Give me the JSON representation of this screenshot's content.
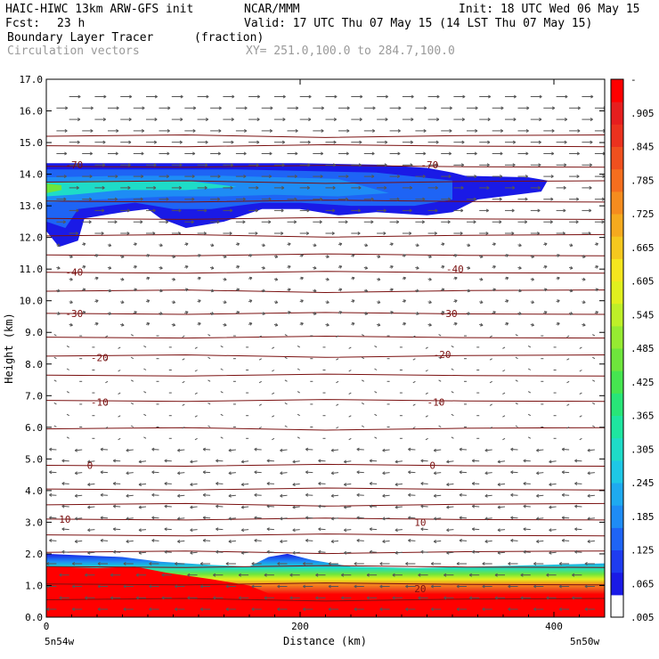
{
  "header": {
    "model": "HAIC-HIWC 13km ARW-GFS init",
    "org": "NCAR/MMM",
    "init": "Init: 18 UTC Wed 06 May 15",
    "fcst_label": "Fcst:",
    "fcst_value": "23 h",
    "valid": "Valid: 17 UTC Thu 07 May 15 (14 LST Thu 07 May 15)",
    "field": "Boundary Layer Tracer",
    "field_units": "(fraction)",
    "overlay": "Circulation vectors",
    "xy": "XY= 251.0,100.0 to 284.7,100.0"
  },
  "colors": {
    "contour": "#7a1010",
    "vector": "#555555",
    "scale": [
      "#ffffff",
      "#1a1ae6",
      "#1e3cf0",
      "#1e64f5",
      "#1e8cf5",
      "#1eaaf0",
      "#1ec8e6",
      "#1edcc8",
      "#1ee6a0",
      "#28e678",
      "#46e650",
      "#6ee63c",
      "#96eb32",
      "#bef028",
      "#e1f01e",
      "#f5e61e",
      "#f5c81e",
      "#f5aa1e",
      "#f58c1e",
      "#f56e1e",
      "#f0501e",
      "#eb321e",
      "#e61e1e",
      "#ff0000"
    ]
  },
  "chart_data": {
    "type": "heatmap",
    "title": "Boundary Layer Tracer",
    "units": "(fraction)",
    "xlabel": "Distance (km)",
    "ylabel": "Height (km)",
    "xlim": [
      0,
      440
    ],
    "ylim": [
      0,
      17
    ],
    "x_ticks": [
      0,
      200,
      400
    ],
    "x_tick_labels": [
      "0",
      "200",
      "400"
    ],
    "x_end_labels": [
      "5n54w",
      "5n50w"
    ],
    "y_ticks": [
      0,
      1,
      2,
      3,
      4,
      5,
      6,
      7,
      8,
      9,
      10,
      11,
      12,
      13,
      14,
      15,
      16,
      17
    ],
    "y_tick_labels": [
      "0.0",
      "1.0",
      "2.0",
      "3.0",
      "4.0",
      "5.0",
      "6.0",
      "7.0",
      "8.0",
      "9.0",
      "10.0",
      "11.0",
      "12.0",
      "13.0",
      "14.0",
      "15.0",
      "16.0",
      "17.0"
    ],
    "colorbar_labels": [
      "-",
      ".905",
      ".845",
      ".785",
      ".725",
      ".665",
      ".605",
      ".545",
      ".485",
      ".425",
      ".365",
      ".305",
      ".245",
      ".185",
      ".125",
      ".065",
      ".005"
    ],
    "contour_labels": [
      {
        "text": "-70",
        "x": 15,
        "y": 14.3
      },
      {
        "text": "-70",
        "x": 295,
        "y": 14.3
      },
      {
        "text": "-40",
        "x": 15,
        "y": 10.9
      },
      {
        "text": "-40",
        "x": 315,
        "y": 11.0
      },
      {
        "text": "-30",
        "x": 15,
        "y": 9.6
      },
      {
        "text": "-30",
        "x": 310,
        "y": 9.6
      },
      {
        "text": "-20",
        "x": 35,
        "y": 8.2
      },
      {
        "text": "-20",
        "x": 305,
        "y": 8.3
      },
      {
        "text": "-10",
        "x": 35,
        "y": 6.8
      },
      {
        "text": "-10",
        "x": 300,
        "y": 6.8
      },
      {
        "text": "0",
        "x": 32,
        "y": 4.8
      },
      {
        "text": "0",
        "x": 302,
        "y": 4.8
      },
      {
        "text": "10",
        "x": 10,
        "y": 3.1
      },
      {
        "text": "10",
        "x": 290,
        "y": 3.0
      },
      {
        "text": "20",
        "x": 290,
        "y": 0.9
      }
    ]
  }
}
